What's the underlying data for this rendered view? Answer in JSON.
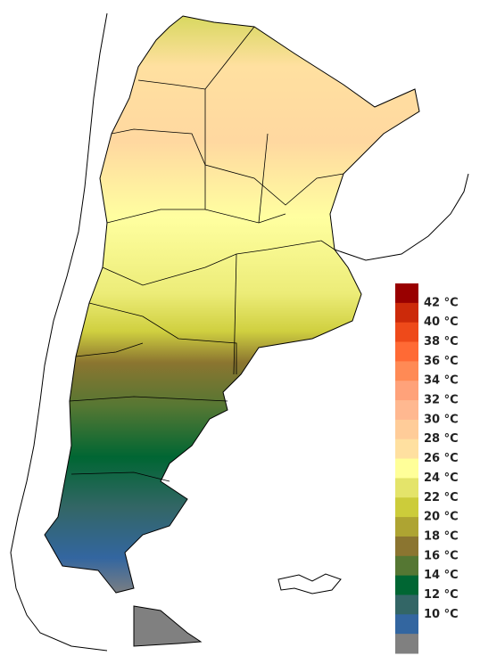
{
  "legend": {
    "labels": [
      "42 °C",
      "40 °C",
      "38 °C",
      "36 °C",
      "34 °C",
      "32 °C",
      "30 °C",
      "28 °C",
      "26 °C",
      "24 °C",
      "22 °C",
      "20 °C",
      "18 °C",
      "16 °C",
      "14 °C",
      "12 °C",
      "10 °C"
    ],
    "colors": [
      "#990000",
      "#cc2a0a",
      "#ee4a1a",
      "#ff6a35",
      "#ff8a55",
      "#ffa27a",
      "#ffb890",
      "#ffcc99",
      "#ffe0a0",
      "#ffff99",
      "#e4e46a",
      "#cccc3a",
      "#aea432",
      "#8b7530",
      "#557733",
      "#006633",
      "#336666",
      "#3366a0",
      "#808080"
    ]
  }
}
